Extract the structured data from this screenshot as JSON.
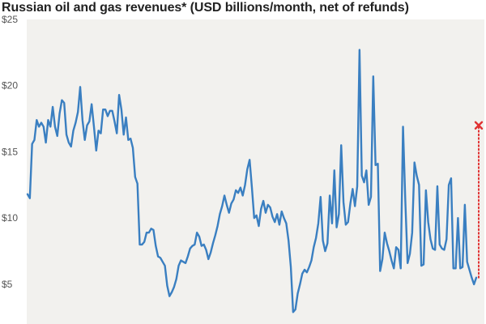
{
  "chart_data": {
    "type": "line",
    "title": "Russian oil and gas revenues* (USD billions/month, net of refunds)",
    "xlabel": "",
    "ylabel": "",
    "ylim": [
      2,
      25
    ],
    "yticks": [
      5,
      10,
      15,
      20,
      25
    ],
    "ytick_labels": [
      "$5",
      "$10",
      "$15",
      "$20",
      "$25"
    ],
    "grid": false,
    "background": "#f2f1ee",
    "series": [
      {
        "color": "#3a7fc1",
        "values": [
          11.8,
          11.5,
          15.6,
          15.9,
          17.4,
          16.9,
          17.2,
          16.9,
          15.7,
          17.4,
          16.9,
          18.4,
          16.9,
          16.2,
          17.9,
          18.9,
          18.7,
          16.3,
          15.7,
          15.4,
          16.6,
          17.2,
          18.0,
          19.9,
          17.4,
          15.9,
          17.0,
          17.3,
          18.6,
          16.9,
          15.1,
          16.6,
          16.4,
          18.2,
          18.2,
          17.7,
          18.1,
          18.1,
          17.3,
          16.4,
          19.3,
          18.2,
          16.3,
          17.6,
          15.9,
          16.0,
          15.3,
          13.1,
          12.6,
          8.0,
          8.0,
          8.2,
          8.9,
          8.9,
          9.2,
          9.1,
          7.9,
          7.1,
          7.0,
          6.7,
          6.4,
          4.9,
          4.1,
          4.4,
          4.8,
          5.4,
          6.4,
          6.8,
          6.7,
          6.6,
          7.1,
          7.7,
          7.9,
          8.0,
          8.9,
          8.6,
          7.9,
          8.0,
          7.6,
          6.9,
          7.4,
          8.1,
          8.7,
          9.4,
          10.3,
          10.9,
          11.7,
          11.0,
          10.4,
          11.1,
          11.4,
          12.1,
          11.9,
          12.3,
          11.7,
          12.5,
          13.7,
          14.4,
          12.3,
          10.0,
          10.2,
          9.4,
          10.7,
          11.3,
          10.4,
          11.0,
          10.8,
          10.1,
          9.7,
          10.3,
          9.5,
          10.5,
          10.0,
          9.6,
          8.3,
          6.3,
          2.9,
          3.1,
          4.3,
          5.0,
          5.8,
          6.1,
          5.9,
          6.3,
          6.8,
          7.8,
          8.5,
          9.6,
          11.6,
          8.3,
          7.5,
          8.1,
          11.7,
          9.6,
          13.6,
          9.3,
          10.3,
          15.5,
          11.2,
          9.5,
          9.7,
          11.1,
          12.2,
          10.9,
          12.4,
          22.7,
          13.2,
          12.7,
          13.6,
          11.0,
          11.6,
          20.7,
          14.0,
          14.1,
          6.0,
          6.9,
          8.9,
          8.1,
          7.5,
          6.8,
          6.2,
          7.8,
          7.6,
          6.2,
          16.9,
          11.3,
          6.6,
          7.3,
          8.9,
          14.2,
          13.2,
          12.5,
          6.4,
          6.5,
          12.1,
          9.7,
          8.4,
          7.7,
          7.6,
          12.4,
          8.0,
          7.7,
          7.6,
          8.4,
          12.5,
          13.0,
          6.2,
          6.2,
          10.0,
          6.2,
          6.3,
          11.0,
          6.7,
          6.1,
          5.5,
          5.0,
          5.5
        ]
      }
    ],
    "projection": {
      "color": "#e03131",
      "from_value": 5.5,
      "to_value": 17.0,
      "end_marker": "cross"
    }
  }
}
